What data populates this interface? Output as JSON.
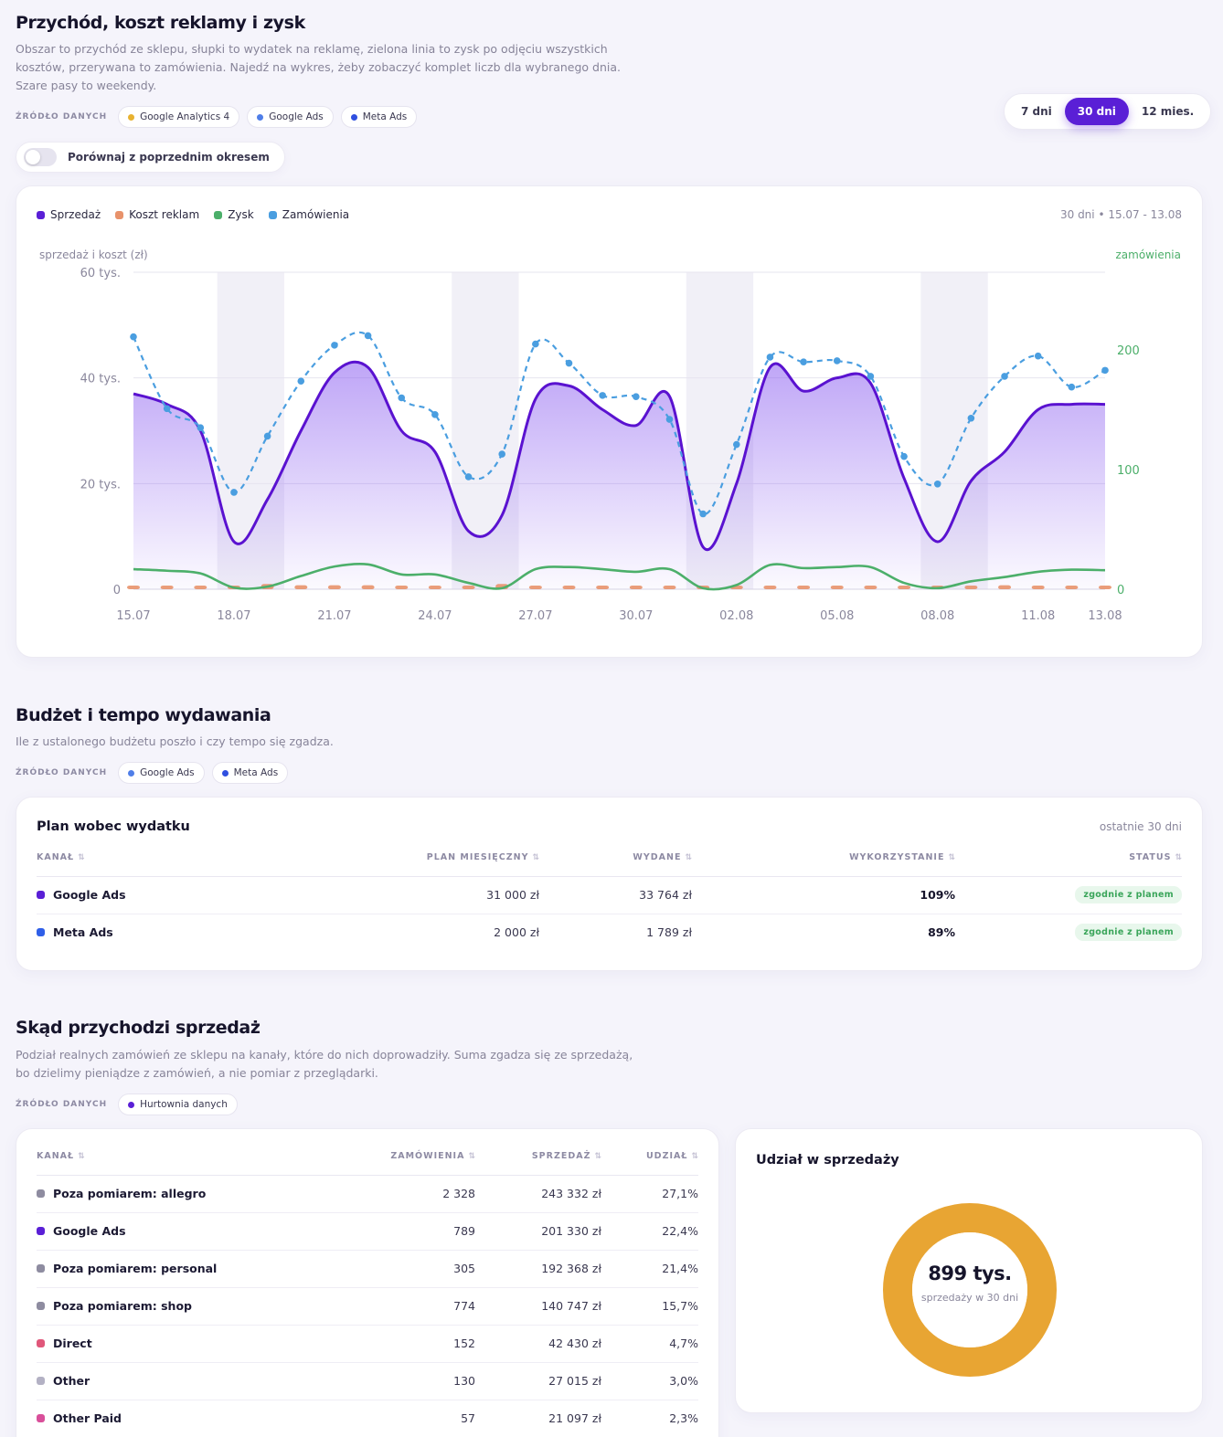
{
  "section1": {
    "title": "Przychód, koszt reklamy i zysk",
    "desc_lines": [
      "Obszar to przychód ze sklepu, słupki to wydatek na reklamę, zielona linia to zysk po odjęciu wszystkich",
      "kosztów, przerywana to zamówienia. Najedź na wykres, żeby zobaczyć komplet liczb dla wybranego dnia.",
      "Szare pasy to weekendy."
    ],
    "source_label": "ŹRÓDŁO DANYCH",
    "sources": [
      {
        "label": "Google Analytics 4",
        "color": "#e8b230"
      },
      {
        "label": "Google Ads",
        "color": "#4f7ee8"
      },
      {
        "label": "Meta Ads",
        "color": "#2f4fe0"
      }
    ],
    "range_buttons": [
      {
        "label": "7 dni",
        "active": false
      },
      {
        "label": "30 dni",
        "active": true
      },
      {
        "label": "12 mies.",
        "active": false
      }
    ],
    "compare_label": "Porównaj z poprzednim okresem"
  },
  "chart_card": {
    "legend": [
      {
        "label": "Sprzedaż",
        "color": "#5a1fd6"
      },
      {
        "label": "Koszt reklam",
        "color": "#e8926b"
      },
      {
        "label": "Zysk",
        "color": "#4caf6a"
      },
      {
        "label": "Zamówienia",
        "color": "#4a9ee0"
      }
    ],
    "range_text": "30 dni • 15.07 - 13.08"
  },
  "chart_data": {
    "type": "line",
    "ylabel": "sprzedaż i koszt (zł)",
    "y2label": "zamówienia",
    "y_ticks": [
      "60 tys.",
      "40 tys.",
      "20 tys.",
      "0"
    ],
    "y2_ticks": [
      "200",
      "100",
      "0"
    ],
    "ylim": [
      0,
      60000
    ],
    "y2lim": [
      0,
      265
    ],
    "x": [
      "15.07",
      "16.07",
      "17.07",
      "18.07",
      "19.07",
      "20.07",
      "21.07",
      "22.07",
      "23.07",
      "24.07",
      "25.07",
      "26.07",
      "27.07",
      "28.07",
      "29.07",
      "30.07",
      "31.07",
      "01.08",
      "02.08",
      "03.08",
      "04.08",
      "05.08",
      "06.08",
      "07.08",
      "08.08",
      "09.08",
      "10.08",
      "11.08",
      "12.08",
      "13.08"
    ],
    "x_tick_labels": [
      "15.07",
      "18.07",
      "21.07",
      "24.07",
      "27.07",
      "30.07",
      "02.08",
      "05.08",
      "08.08",
      "11.08",
      "13.08"
    ],
    "weekend_index_ranges": [
      [
        2.5,
        4.5
      ],
      [
        9.5,
        11.5
      ],
      [
        16.5,
        18.5
      ],
      [
        23.5,
        25.5
      ]
    ],
    "series": [
      {
        "name": "Sprzedaż",
        "values": [
          37000,
          35000,
          30000,
          9000,
          17000,
          30000,
          41000,
          42000,
          30000,
          26000,
          11000,
          14000,
          36000,
          38500,
          34000,
          31000,
          36500,
          8000,
          20000,
          42000,
          37500,
          40000,
          39000,
          21000,
          9000,
          20500,
          26000,
          34000,
          35000,
          35000
        ]
      },
      {
        "name": "Koszt reklam",
        "values": [
          700,
          700,
          650,
          400,
          1000,
          750,
          750,
          750,
          700,
          650,
          450,
          1000,
          650,
          650,
          600,
          600,
          500,
          350,
          650,
          700,
          700,
          700,
          700,
          600,
          400,
          700,
          750,
          700,
          700,
          700
        ]
      },
      {
        "name": "Zysk",
        "values": [
          3800,
          3500,
          3000,
          300,
          500,
          2500,
          4300,
          4700,
          2800,
          2800,
          1200,
          200,
          3800,
          4200,
          3800,
          3300,
          3800,
          200,
          800,
          4600,
          4000,
          4200,
          4200,
          1200,
          200,
          1500,
          2300,
          3300,
          3700,
          3600
        ]
      },
      {
        "name": "Zamówienia",
        "values": [
          211,
          151,
          135,
          81,
          128,
          174,
          204,
          212,
          160,
          146,
          94,
          113,
          205,
          189,
          162,
          161,
          142,
          63,
          121,
          194,
          190,
          191,
          178,
          111,
          88,
          143,
          178,
          195,
          169,
          183
        ]
      }
    ]
  },
  "section2": {
    "title": "Budżet i tempo wydawania",
    "desc": "Ile z ustalonego budżetu poszło i czy tempo się zgadza.",
    "source_label": "ŹRÓDŁO DANYCH",
    "sources": [
      {
        "label": "Google Ads",
        "color": "#4f7ee8"
      },
      {
        "label": "Meta Ads",
        "color": "#2f4fe0"
      }
    ],
    "card_title": "Plan wobec wydatku",
    "card_meta": "ostatnie 30 dni",
    "columns": [
      "KANAŁ",
      "PLAN MIESIĘCZNY",
      "WYDANE",
      "WYKORZYSTANIE",
      "STATUS"
    ],
    "rows": [
      {
        "channel": "Google Ads",
        "color": "#5a1fd6",
        "plan": "31 000 zł",
        "spent": "33 764 zł",
        "usage": "109%",
        "status": "zgodnie z planem"
      },
      {
        "channel": "Meta Ads",
        "color": "#2f5fe8",
        "plan": "2 000 zł",
        "spent": "1 789 zł",
        "usage": "89%",
        "status": "zgodnie z planem"
      }
    ]
  },
  "section3": {
    "title": "Skąd przychodzi sprzedaż",
    "desc_lines": [
      "Podział realnych zamówień ze sklepu na kanały, które do nich doprowadziły. Suma zgadza się ze sprzedażą,",
      "bo dzielimy pieniądze z zamówień, a nie pomiar z przeglądarki."
    ],
    "source_label": "ŹRÓDŁO DANYCH",
    "sources": [
      {
        "label": "Hurtownia danych",
        "color": "#5a1fd6"
      }
    ],
    "columns": [
      "KANAŁ",
      "ZAMÓWIENIA",
      "SPRZEDAŻ",
      "UDZIAŁ"
    ],
    "rows": [
      {
        "channel": "Poza pomiarem: allegro",
        "color": "#8e8ca0",
        "orders": "2 328",
        "sales": "243 332 zł",
        "share": "27,1%"
      },
      {
        "channel": "Google Ads",
        "color": "#5a1fd6",
        "orders": "789",
        "sales": "201 330 zł",
        "share": "22,4%"
      },
      {
        "channel": "Poza pomiarem: personal",
        "color": "#8e8ca0",
        "orders": "305",
        "sales": "192 368 zł",
        "share": "21,4%"
      },
      {
        "channel": "Poza pomiarem: shop",
        "color": "#8e8ca0",
        "orders": "774",
        "sales": "140 747 zł",
        "share": "15,7%"
      },
      {
        "channel": "Direct",
        "color": "#e0577a",
        "orders": "152",
        "sales": "42 430 zł",
        "share": "4,7%"
      },
      {
        "channel": "Other",
        "color": "#b3b1c4",
        "orders": "130",
        "sales": "27 015 zł",
        "share": "3,0%"
      },
      {
        "channel": "Other Paid",
        "color": "#d94f9a",
        "orders": "57",
        "sales": "21 097 zł",
        "share": "2,3%"
      }
    ],
    "donut": {
      "title": "Udział w sprzedaży",
      "value": "899 tys.",
      "caption": "sprzedaży w 30 dni",
      "color": "#e8a533"
    }
  }
}
